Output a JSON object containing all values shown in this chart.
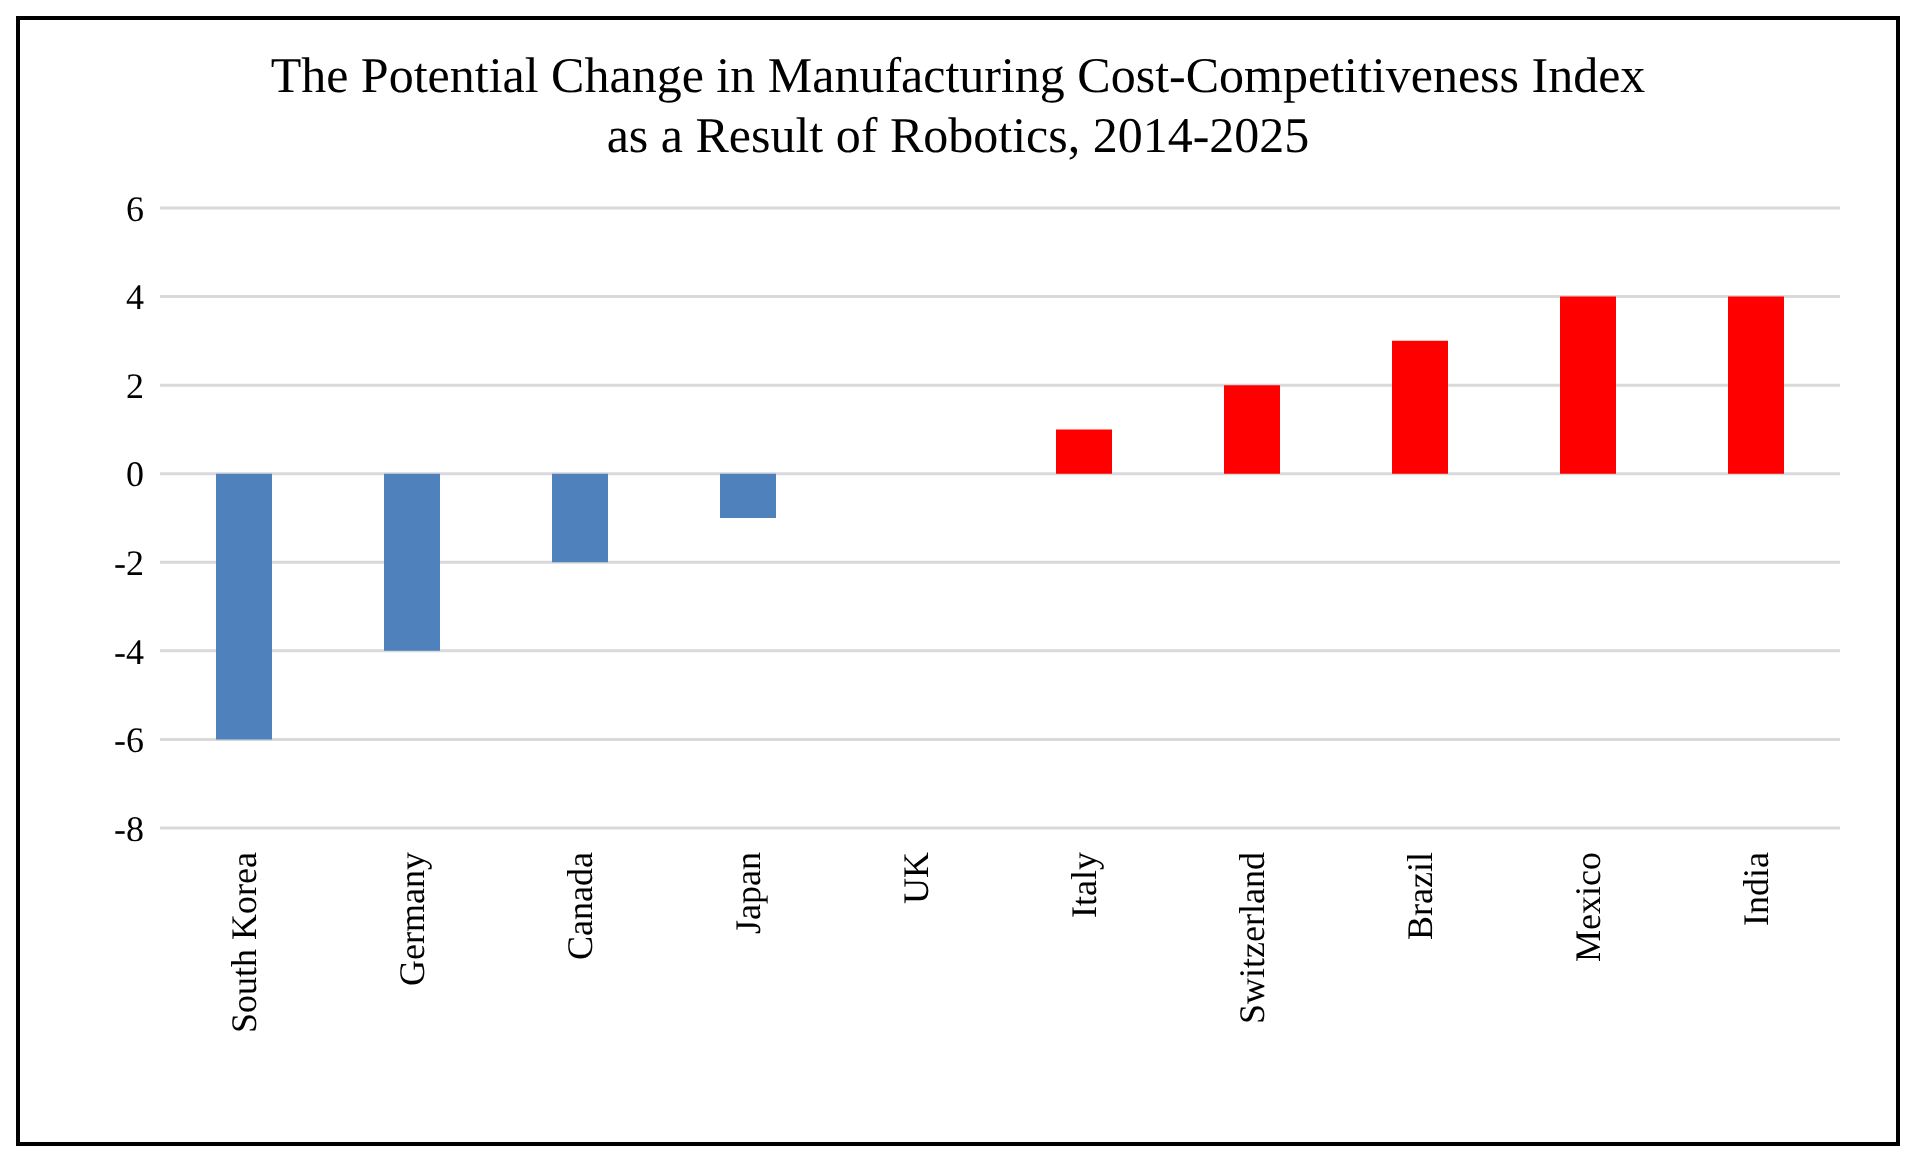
{
  "chart_data": {
    "type": "bar",
    "title": "The Potential Change in Manufacturing Cost-Competitiveness Index as a Result of Robotics, 2014-2025",
    "categories": [
      "South Korea",
      "Germany",
      "Canada",
      "Japan",
      "UK",
      "Italy",
      "Switzerland",
      "Brazil",
      "Mexico",
      "India"
    ],
    "values": [
      -6,
      -4,
      -2,
      -1,
      0,
      1,
      2,
      3,
      4,
      4
    ],
    "colors": [
      "#4f81bd",
      "#4f81bd",
      "#4f81bd",
      "#4f81bd",
      "#4f81bd",
      "#ff0000",
      "#ff0000",
      "#ff0000",
      "#ff0000",
      "#ff0000"
    ],
    "ylim": [
      -8,
      6
    ],
    "yticks": [
      -8,
      -6,
      -4,
      -2,
      0,
      2,
      4,
      6
    ],
    "grid": "y",
    "legend": false
  }
}
